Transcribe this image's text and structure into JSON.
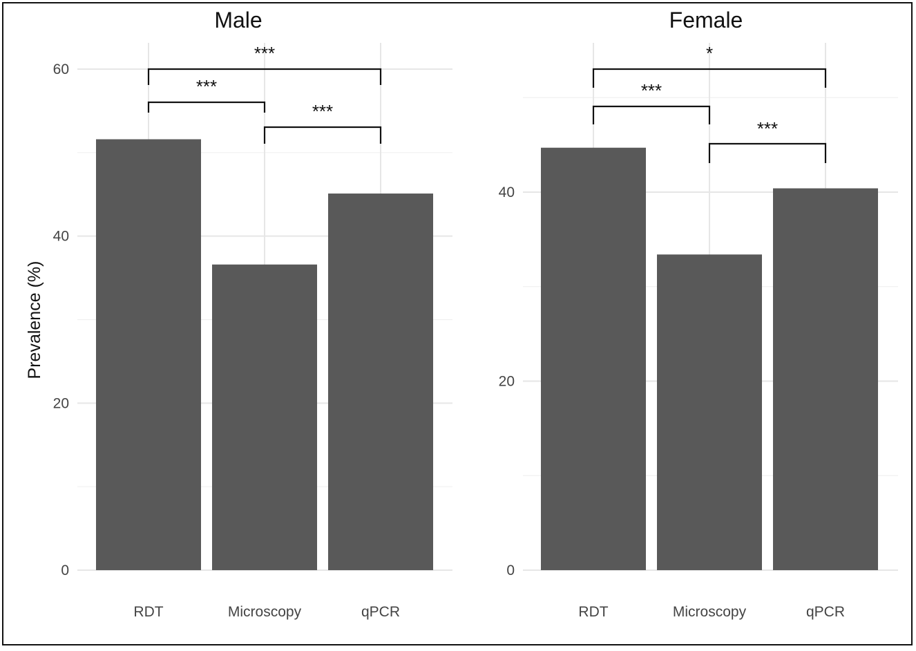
{
  "chart_data": [
    {
      "type": "bar",
      "title": "Male",
      "ylabel": "Prevalence (%)",
      "categories": [
        "RDT",
        "Microscopy",
        "qPCR"
      ],
      "values": [
        51.6,
        36.6,
        45.1
      ],
      "ylim": [
        0,
        60
      ],
      "yticks": [
        0,
        20,
        40,
        60
      ],
      "grid": true,
      "significance": [
        {
          "from": "RDT",
          "to": "Microscopy",
          "label": "***"
        },
        {
          "from": "Microscopy",
          "to": "qPCR",
          "label": "***"
        },
        {
          "from": "RDT",
          "to": "qPCR",
          "label": "***"
        }
      ]
    },
    {
      "type": "bar",
      "title": "Female",
      "ylabel": "",
      "categories": [
        "RDT",
        "Microscopy",
        "qPCR"
      ],
      "values": [
        44.7,
        33.4,
        40.4
      ],
      "ylim": [
        0,
        50
      ],
      "yticks": [
        0,
        20,
        40
      ],
      "grid": true,
      "significance": [
        {
          "from": "RDT",
          "to": "Microscopy",
          "label": "***"
        },
        {
          "from": "Microscopy",
          "to": "qPCR",
          "label": "***"
        },
        {
          "from": "RDT",
          "to": "qPCR",
          "label": "*"
        }
      ]
    }
  ]
}
